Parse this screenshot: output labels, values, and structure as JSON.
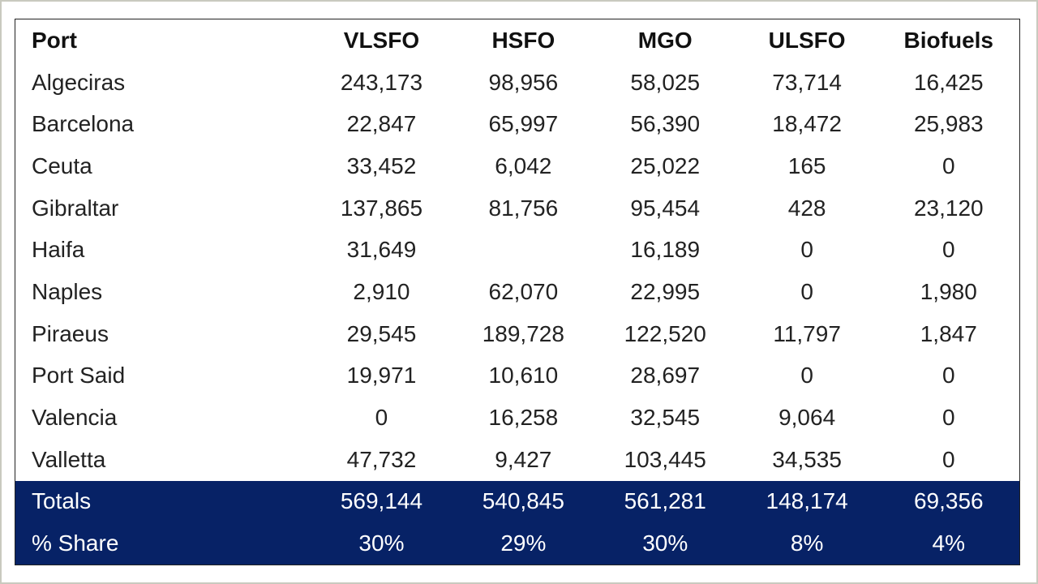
{
  "colors": {
    "totals_background": "#072266",
    "totals_text": "#ffffff"
  },
  "table": {
    "headers": [
      "Port",
      "VLSFO",
      "HSFO",
      "MGO",
      "ULSFO",
      "Biofuels"
    ],
    "rows": [
      [
        "Algeciras",
        "243,173",
        "98,956",
        "58,025",
        "73,714",
        "16,425"
      ],
      [
        "Barcelona",
        "22,847",
        "65,997",
        "56,390",
        "18,472",
        "25,983"
      ],
      [
        "Ceuta",
        "33,452",
        "6,042",
        "25,022",
        "165",
        "0"
      ],
      [
        "Gibraltar",
        "137,865",
        "81,756",
        "95,454",
        "428",
        "23,120"
      ],
      [
        "Haifa",
        "31,649",
        "",
        "16,189",
        "0",
        "0"
      ],
      [
        "Naples",
        "2,910",
        "62,070",
        "22,995",
        "0",
        "1,980"
      ],
      [
        "Piraeus",
        "29,545",
        "189,728",
        "122,520",
        "11,797",
        "1,847"
      ],
      [
        "Port Said",
        "19,971",
        "10,610",
        "28,697",
        "0",
        "0"
      ],
      [
        "Valencia",
        "0",
        "16,258",
        "32,545",
        "9,064",
        "0"
      ],
      [
        "Valletta",
        "47,732",
        "9,427",
        "103,445",
        "34,535",
        "0"
      ]
    ],
    "totals": [
      "Totals",
      "569,144",
      "540,845",
      "561,281",
      "148,174",
      "69,356"
    ],
    "share": [
      "% Share",
      "30%",
      "29%",
      "30%",
      "8%",
      "4%"
    ]
  }
}
